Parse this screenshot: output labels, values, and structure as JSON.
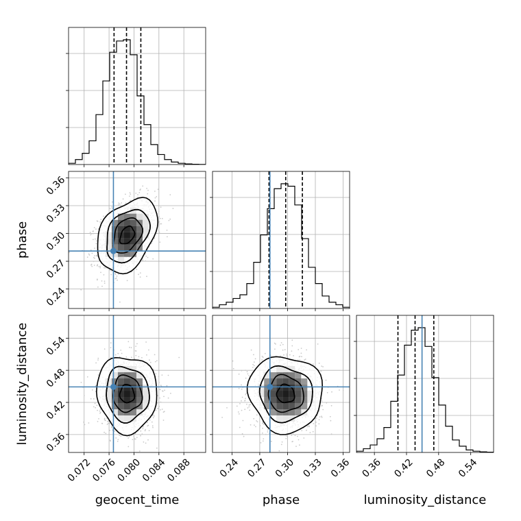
{
  "chart_data": {
    "type": "corner",
    "parameters": [
      "geocent_time",
      "phase",
      "luminosity_distance"
    ],
    "axis_labels": {
      "geocent_time": "geocent_time",
      "phase": "phase",
      "luminosity_distance": "luminosity_distance"
    },
    "ranges": {
      "geocent_time": [
        0.0695,
        0.0915
      ],
      "phase": [
        0.219,
        0.367
      ],
      "luminosity_distance": [
        0.3265,
        0.5827
      ]
    },
    "ticks": {
      "geocent_time": [
        "0.072",
        "0.076",
        "0.080",
        "0.084",
        "0.088"
      ],
      "phase": [
        "0.24",
        "0.27",
        "0.30",
        "0.33",
        "0.36"
      ],
      "luminosity_distance": [
        "0.36",
        "0.42",
        "0.48",
        "0.54"
      ]
    },
    "truths": {
      "geocent_time": 0.0767,
      "phase": 0.281,
      "luminosity_distance": 0.449
    },
    "quantiles": {
      "geocent_time": [
        0.0768,
        0.0788,
        0.0811
      ],
      "phase": [
        0.28,
        0.298,
        0.316
      ],
      "luminosity_distance": [
        0.404,
        0.436,
        0.471
      ]
    },
    "histograms": {
      "geocent_time": [
        0.01,
        0.04,
        0.09,
        0.19,
        0.4,
        0.67,
        0.9,
        0.99,
        1.0,
        0.88,
        0.55,
        0.32,
        0.16,
        0.08,
        0.04,
        0.02,
        0.01,
        0.005,
        0.002,
        0.001
      ],
      "phase": [
        0.01,
        0.03,
        0.05,
        0.08,
        0.11,
        0.2,
        0.37,
        0.59,
        0.8,
        0.96,
        1.0,
        0.98,
        0.83,
        0.56,
        0.33,
        0.2,
        0.1,
        0.05,
        0.03,
        0.01
      ],
      "luminosity_distance": [
        0.01,
        0.03,
        0.06,
        0.11,
        0.2,
        0.41,
        0.62,
        0.86,
        0.98,
        1.0,
        0.85,
        0.6,
        0.38,
        0.21,
        0.1,
        0.05,
        0.02,
        0.01,
        0.005,
        0.002
      ]
    },
    "posterior_2d": {
      "phase_vs_geocent_time": {
        "mean": [
          0.0789,
          0.298
        ],
        "sd": [
          0.0023,
          0.019
        ],
        "rho": 0.35
      },
      "luminosity_distance_vs_geocent_time": {
        "mean": [
          0.0789,
          0.436
        ],
        "sd": [
          0.0023,
          0.034
        ],
        "rho": -0.05
      },
      "luminosity_distance_vs_phase": {
        "mean": [
          0.298,
          0.436
        ],
        "sd": [
          0.019,
          0.034
        ],
        "rho": -0.05
      }
    },
    "truth_color": "#4682b4",
    "grid": true,
    "legend": "none"
  }
}
